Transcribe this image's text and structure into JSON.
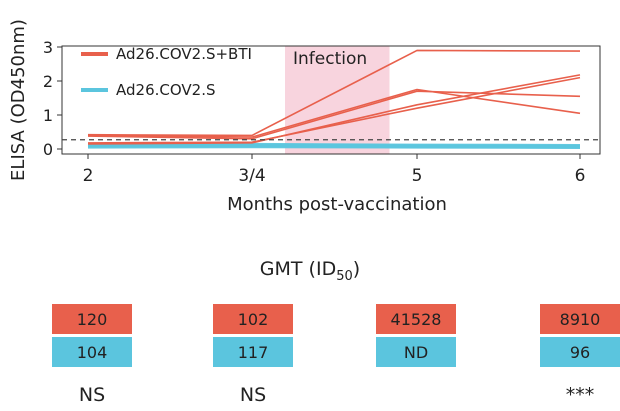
{
  "chart_data": {
    "type": "line",
    "ylabel": "ELISA (OD450nm)",
    "xlabel": "Months post-vaccination",
    "x_ticks": [
      "2",
      "3/4",
      "5",
      "6"
    ],
    "x_tick_values": [
      2,
      3.5,
      5,
      6
    ],
    "y_ticks": [
      "0",
      "1",
      "2",
      "3"
    ],
    "ylim": [
      0,
      3
    ],
    "xlim": [
      2,
      6
    ],
    "threshold": 0.42,
    "infection_window": [
      3.8,
      4.75
    ],
    "infection_label": "Infection",
    "legend": [
      {
        "name": "Ad26.COV2.S+BTI",
        "color": "#e8604c"
      },
      {
        "name": "Ad26.COV2.S",
        "color": "#5bc5de"
      }
    ],
    "series": [
      {
        "name": "Ad26.COV2.S+BTI",
        "color": "#e8604c",
        "x": [
          2,
          3.5,
          5,
          6
        ],
        "y": [
          0.42,
          0.4,
          2.9,
          2.88
        ]
      },
      {
        "name": "Ad26.COV2.S+BTI",
        "color": "#e8604c",
        "x": [
          2,
          3.5,
          5,
          6
        ],
        "y": [
          0.4,
          0.35,
          1.75,
          1.05
        ]
      },
      {
        "name": "Ad26.COV2.S+BTI",
        "color": "#e8604c",
        "x": [
          2,
          3.5,
          5,
          6
        ],
        "y": [
          0.38,
          0.3,
          1.7,
          1.55
        ]
      },
      {
        "name": "Ad26.COV2.S+BTI",
        "color": "#e8604c",
        "x": [
          2,
          3.5,
          5,
          6
        ],
        "y": [
          0.18,
          0.2,
          1.2,
          2.1
        ]
      },
      {
        "name": "Ad26.COV2.S+BTI",
        "color": "#e8604c",
        "x": [
          2,
          3.5,
          5,
          6
        ],
        "y": [
          0.15,
          0.18,
          1.3,
          2.18
        ]
      },
      {
        "name": "Ad26.COV2.S",
        "color": "#5bc5de",
        "x": [
          2,
          3.5,
          5,
          6
        ],
        "y": [
          0.1,
          0.1,
          0.08,
          0.07
        ]
      },
      {
        "name": "Ad26.COV2.S",
        "color": "#5bc5de",
        "x": [
          2,
          3.5,
          5,
          6
        ],
        "y": [
          0.12,
          0.12,
          0.1,
          0.09
        ]
      },
      {
        "name": "Ad26.COV2.S",
        "color": "#5bc5de",
        "x": [
          2,
          3.5,
          5,
          6
        ],
        "y": [
          0.07,
          0.08,
          0.07,
          0.06
        ]
      }
    ]
  },
  "gmt": {
    "title_main": "GMT (ID",
    "title_sub": "50",
    "title_end": ")",
    "columns": [
      {
        "top": "120",
        "bottom": "104",
        "sig": "NS"
      },
      {
        "top": "102",
        "bottom": "117",
        "sig": "NS"
      },
      {
        "top": "41528",
        "bottom": "ND",
        "sig": ""
      },
      {
        "top": "8910",
        "bottom": "96",
        "sig": "***"
      }
    ]
  }
}
